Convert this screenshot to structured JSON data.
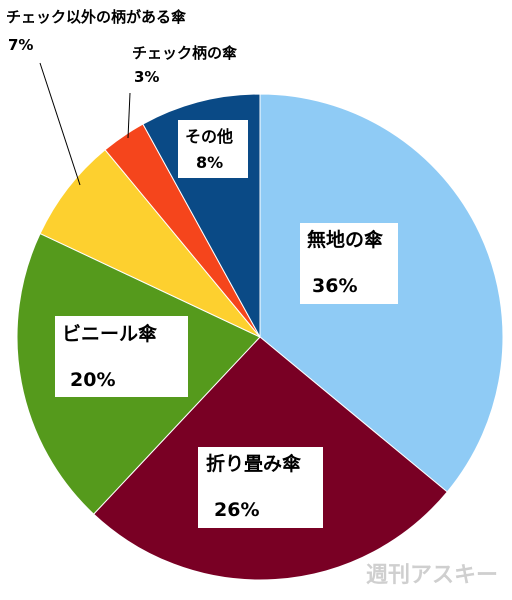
{
  "chart_data": {
    "type": "pie",
    "title": "",
    "slices": [
      {
        "label": "無地の傘",
        "value": 36,
        "value_text": "36%",
        "color": "#8fcbf5"
      },
      {
        "label": "折り畳み傘",
        "value": 26,
        "value_text": "26%",
        "color": "#790024"
      },
      {
        "label": "ビニール傘",
        "value": 20,
        "value_text": "20%",
        "color": "#559a1c"
      },
      {
        "label": "チェック以外の柄がある傘",
        "value": 7,
        "value_text": "7%",
        "color": "#fdd02f"
      },
      {
        "label": "チェック柄の傘",
        "value": 3,
        "value_text": "3%",
        "color": "#f5451c"
      },
      {
        "label": "その他",
        "value": 8,
        "value_text": "8%",
        "color": "#0a4a86"
      }
    ],
    "start_angle_deg": 0,
    "direction": "clockwise",
    "legend": "none",
    "label_style": "boxed labels inside slices; leader lines for small slices"
  },
  "watermark": "週刊アスキー"
}
